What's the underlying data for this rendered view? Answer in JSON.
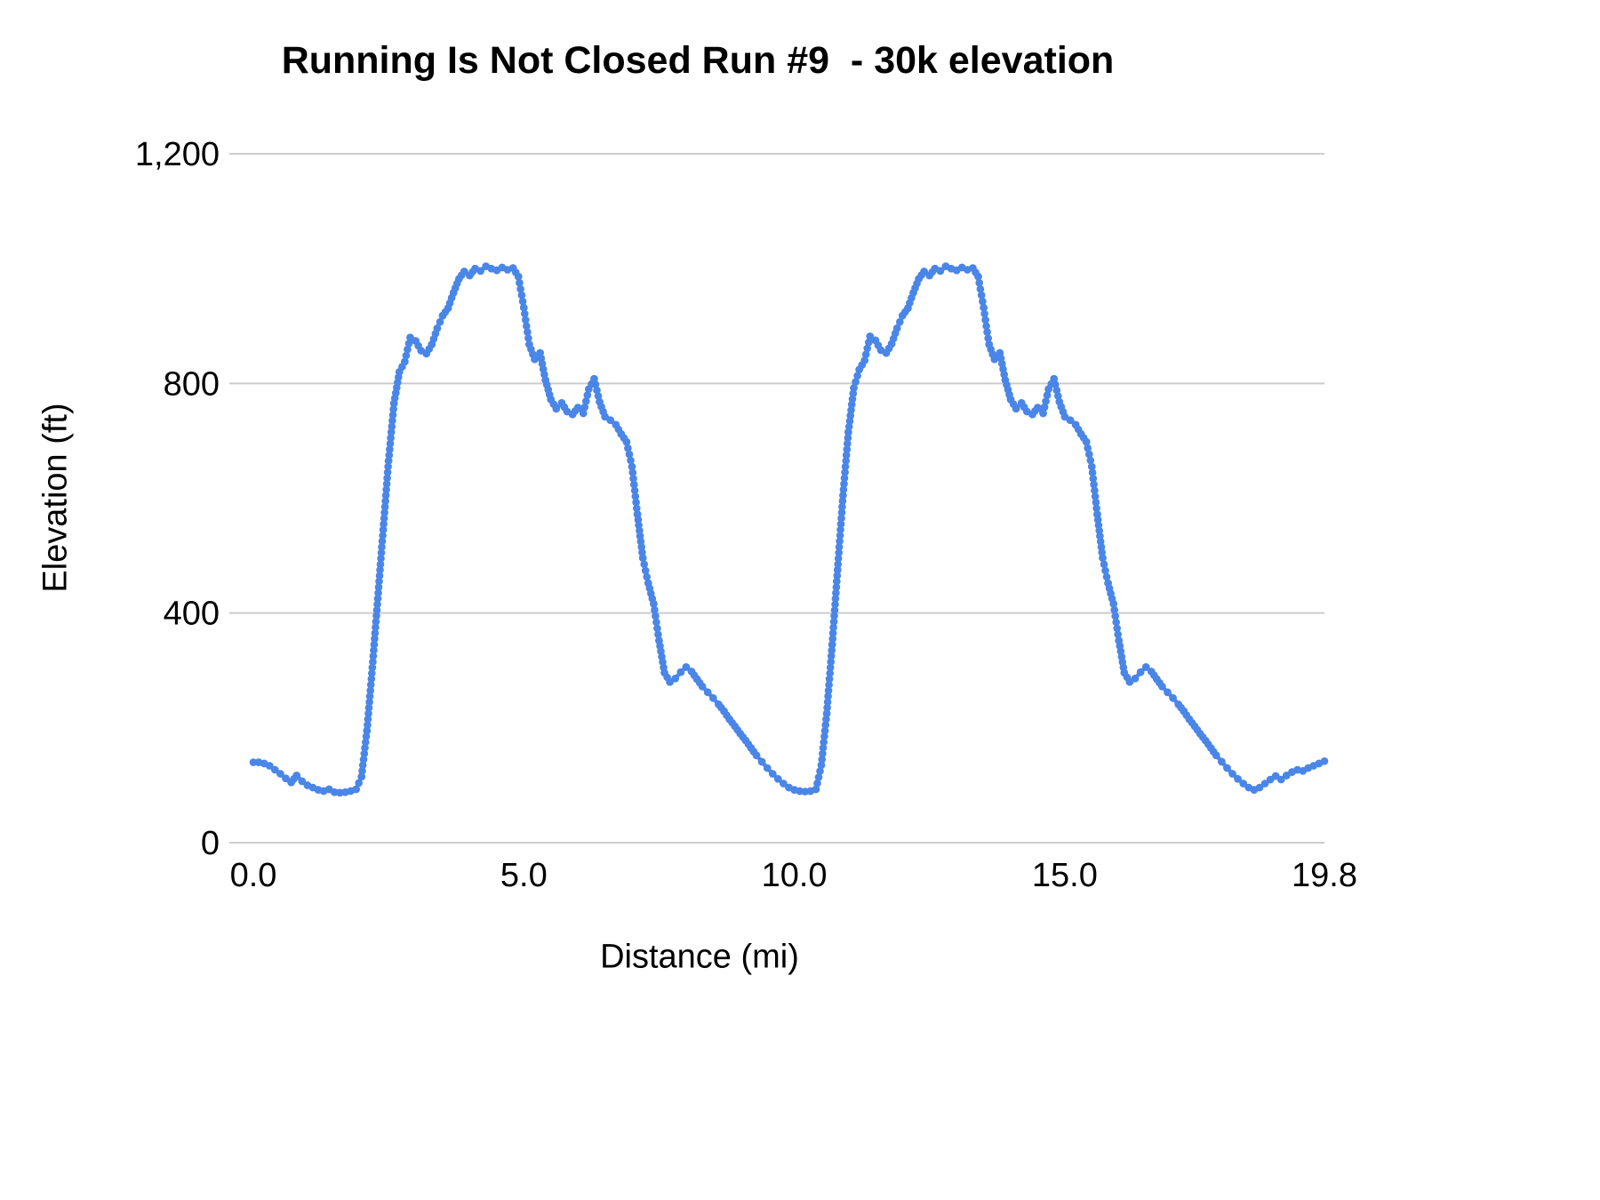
{
  "title": "Running Is Not Closed Run #9  - 30k elevation",
  "chart_data": {
    "type": "line",
    "title": "Running Is Not Closed Run #9  - 30k elevation",
    "xlabel": "Distance (mi)",
    "ylabel": "Elevation (ft)",
    "xlim": [
      0,
      19.8
    ],
    "ylim": [
      0,
      1200
    ],
    "grid": "horizontal",
    "legend": "none",
    "line_color": "#4a86e8",
    "gridline_color": "#cccccc",
    "text_color": "#000000",
    "xticks": {
      "values": [
        0,
        5,
        10,
        15,
        19.8
      ],
      "labels": [
        "0.0",
        "5.0",
        "10.0",
        "15.0",
        "19.8"
      ]
    },
    "yticks": {
      "values": [
        0,
        400,
        800,
        1200
      ],
      "labels": [
        "0",
        "400",
        "800",
        "1,200"
      ]
    },
    "series": [
      {
        "name": "Elevation",
        "points": [
          [
            0,
            140
          ],
          [
            0.1,
            140
          ],
          [
            0.2,
            138
          ],
          [
            0.3,
            134
          ],
          [
            0.4,
            127
          ],
          [
            0.5,
            120
          ],
          [
            0.6,
            112
          ],
          [
            0.7,
            105
          ],
          [
            0.8,
            117
          ],
          [
            0.9,
            107
          ],
          [
            1,
            100
          ],
          [
            1.1,
            96
          ],
          [
            1.2,
            92
          ],
          [
            1.3,
            90
          ],
          [
            1.4,
            93
          ],
          [
            1.5,
            88
          ],
          [
            1.6,
            87
          ],
          [
            1.7,
            88
          ],
          [
            1.8,
            90
          ],
          [
            1.9,
            93
          ],
          [
            2,
            115
          ],
          [
            2.1,
            195
          ],
          [
            2.2,
            305
          ],
          [
            2.3,
            425
          ],
          [
            2.4,
            545
          ],
          [
            2.5,
            665
          ],
          [
            2.6,
            765
          ],
          [
            2.7,
            820
          ],
          [
            2.8,
            838
          ],
          [
            2.9,
            880
          ],
          [
            3,
            874
          ],
          [
            3.1,
            857
          ],
          [
            3.2,
            852
          ],
          [
            3.3,
            868
          ],
          [
            3.4,
            896
          ],
          [
            3.5,
            918
          ],
          [
            3.6,
            931
          ],
          [
            3.7,
            958
          ],
          [
            3.8,
            982
          ],
          [
            3.9,
            995
          ],
          [
            4,
            988
          ],
          [
            4.1,
            1000
          ],
          [
            4.2,
            996
          ],
          [
            4.3,
            1004
          ],
          [
            4.4,
            1000
          ],
          [
            4.5,
            997
          ],
          [
            4.6,
            1002
          ],
          [
            4.7,
            998
          ],
          [
            4.8,
            1001
          ],
          [
            4.9,
            986
          ],
          [
            5,
            932
          ],
          [
            5.1,
            868
          ],
          [
            5.2,
            842
          ],
          [
            5.3,
            853
          ],
          [
            5.4,
            806
          ],
          [
            5.5,
            772
          ],
          [
            5.6,
            756
          ],
          [
            5.7,
            766
          ],
          [
            5.8,
            751
          ],
          [
            5.9,
            746
          ],
          [
            6,
            758
          ],
          [
            6.1,
            748
          ],
          [
            6.2,
            790
          ],
          [
            6.3,
            808
          ],
          [
            6.4,
            768
          ],
          [
            6.5,
            742
          ],
          [
            6.6,
            736
          ],
          [
            6.7,
            728
          ],
          [
            6.8,
            712
          ],
          [
            6.9,
            698
          ],
          [
            7,
            655
          ],
          [
            7.1,
            572
          ],
          [
            7.2,
            496
          ],
          [
            7.3,
            452
          ],
          [
            7.4,
            416
          ],
          [
            7.5,
            352
          ],
          [
            7.6,
            296
          ],
          [
            7.7,
            280
          ],
          [
            7.8,
            286
          ],
          [
            7.9,
            297
          ],
          [
            8,
            306
          ],
          [
            8.1,
            298
          ],
          [
            8.2,
            285
          ],
          [
            8.3,
            272
          ],
          [
            8.4,
            262
          ],
          [
            8.5,
            252
          ],
          [
            8.6,
            241
          ],
          [
            8.7,
            229
          ],
          [
            8.8,
            215
          ],
          [
            8.9,
            203
          ],
          [
            9,
            190
          ],
          [
            9.1,
            178
          ],
          [
            9.2,
            165
          ],
          [
            9.3,
            152
          ],
          [
            9.4,
            141
          ],
          [
            9.5,
            130
          ],
          [
            9.6,
            120
          ],
          [
            9.7,
            111
          ],
          [
            9.8,
            103
          ],
          [
            9.9,
            96
          ],
          [
            10,
            92
          ],
          [
            10.1,
            90
          ],
          [
            10.2,
            89
          ],
          [
            10.3,
            90
          ],
          [
            10.4,
            93
          ],
          [
            10.5,
            135
          ],
          [
            10.6,
            225
          ],
          [
            10.7,
            345
          ],
          [
            10.8,
            475
          ],
          [
            10.9,
            605
          ],
          [
            11,
            715
          ],
          [
            11.1,
            792
          ],
          [
            11.2,
            824
          ],
          [
            11.3,
            840
          ],
          [
            11.4,
            882
          ],
          [
            11.5,
            875
          ],
          [
            11.6,
            858
          ],
          [
            11.7,
            853
          ],
          [
            11.8,
            869
          ],
          [
            11.9,
            896
          ],
          [
            12,
            918
          ],
          [
            12.1,
            931
          ],
          [
            12.2,
            958
          ],
          [
            12.3,
            982
          ],
          [
            12.4,
            995
          ],
          [
            12.5,
            988
          ],
          [
            12.6,
            1000
          ],
          [
            12.7,
            996
          ],
          [
            12.8,
            1004
          ],
          [
            12.9,
            1000
          ],
          [
            13,
            997
          ],
          [
            13.1,
            1002
          ],
          [
            13.2,
            998
          ],
          [
            13.3,
            1001
          ],
          [
            13.4,
            986
          ],
          [
            13.5,
            932
          ],
          [
            13.6,
            868
          ],
          [
            13.7,
            842
          ],
          [
            13.8,
            853
          ],
          [
            13.9,
            806
          ],
          [
            14,
            772
          ],
          [
            14.1,
            756
          ],
          [
            14.2,
            766
          ],
          [
            14.3,
            751
          ],
          [
            14.4,
            746
          ],
          [
            14.5,
            758
          ],
          [
            14.6,
            748
          ],
          [
            14.7,
            790
          ],
          [
            14.8,
            808
          ],
          [
            14.9,
            768
          ],
          [
            15,
            742
          ],
          [
            15.1,
            736
          ],
          [
            15.2,
            728
          ],
          [
            15.3,
            712
          ],
          [
            15.4,
            698
          ],
          [
            15.5,
            655
          ],
          [
            15.6,
            572
          ],
          [
            15.7,
            496
          ],
          [
            15.8,
            452
          ],
          [
            15.9,
            416
          ],
          [
            16,
            352
          ],
          [
            16.1,
            296
          ],
          [
            16.2,
            280
          ],
          [
            16.3,
            286
          ],
          [
            16.4,
            297
          ],
          [
            16.5,
            306
          ],
          [
            16.6,
            298
          ],
          [
            16.7,
            285
          ],
          [
            16.8,
            272
          ],
          [
            16.9,
            262
          ],
          [
            17,
            252
          ],
          [
            17.1,
            241
          ],
          [
            17.2,
            229
          ],
          [
            17.3,
            215
          ],
          [
            17.4,
            203
          ],
          [
            17.5,
            190
          ],
          [
            17.6,
            178
          ],
          [
            17.7,
            165
          ],
          [
            17.8,
            152
          ],
          [
            17.9,
            141
          ],
          [
            18,
            130
          ],
          [
            18.1,
            120
          ],
          [
            18.2,
            111
          ],
          [
            18.3,
            103
          ],
          [
            18.4,
            96
          ],
          [
            18.5,
            92
          ],
          [
            18.6,
            96
          ],
          [
            18.7,
            103
          ],
          [
            18.8,
            110
          ],
          [
            18.9,
            116
          ],
          [
            19,
            110
          ],
          [
            19.1,
            117
          ],
          [
            19.2,
            123
          ],
          [
            19.3,
            127
          ],
          [
            19.4,
            125
          ],
          [
            19.5,
            130
          ],
          [
            19.6,
            134
          ],
          [
            19.7,
            138
          ],
          [
            19.8,
            142
          ]
        ]
      }
    ]
  }
}
